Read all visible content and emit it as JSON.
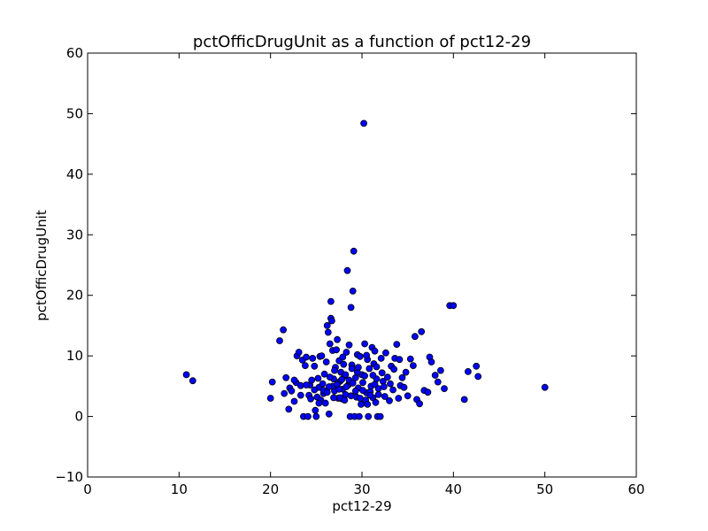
{
  "chart_data": {
    "type": "scatter",
    "title": "pctOfficDrugUnit as a function of pct12-29",
    "xlabel": "pct12-29",
    "ylabel": "pctOfficDrugUnit",
    "xlim": [
      0,
      60
    ],
    "ylim": [
      -10,
      60
    ],
    "x_ticks": [
      0,
      10,
      20,
      30,
      40,
      50,
      60
    ],
    "y_ticks": [
      -10,
      0,
      10,
      20,
      30,
      40,
      50,
      60
    ],
    "x_tick_labels": [
      "0",
      "10",
      "20",
      "30",
      "40",
      "50",
      "60"
    ],
    "y_tick_labels": [
      "−10",
      "0",
      "10",
      "20",
      "30",
      "40",
      "50",
      "60"
    ],
    "grid": false,
    "marker_color": "#0000ff",
    "marker_edge_color": "#000000",
    "points": [
      [
        10.8,
        6.9
      ],
      [
        11.5,
        5.9
      ],
      [
        20.0,
        3.0
      ],
      [
        20.2,
        5.7
      ],
      [
        21.0,
        12.5
      ],
      [
        21.4,
        14.3
      ],
      [
        21.5,
        3.8
      ],
      [
        21.7,
        6.4
      ],
      [
        22.0,
        1.2
      ],
      [
        22.1,
        4.7
      ],
      [
        22.3,
        4.2
      ],
      [
        22.6,
        2.5
      ],
      [
        22.8,
        5.6
      ],
      [
        22.9,
        10.0
      ],
      [
        23.1,
        10.6
      ],
      [
        23.3,
        5.1
      ],
      [
        23.5,
        9.3
      ],
      [
        23.6,
        0.0
      ],
      [
        23.8,
        8.4
      ],
      [
        23.9,
        9.8
      ],
      [
        24.1,
        0.0
      ],
      [
        24.2,
        3.5
      ],
      [
        24.3,
        5.2
      ],
      [
        24.5,
        6.0
      ],
      [
        24.6,
        9.6
      ],
      [
        24.8,
        8.3
      ],
      [
        24.9,
        1.0
      ],
      [
        25.0,
        0.0
      ],
      [
        25.1,
        3.2
      ],
      [
        25.2,
        6.3
      ],
      [
        25.3,
        4.8
      ],
      [
        25.4,
        9.9
      ],
      [
        25.5,
        2.7
      ],
      [
        25.6,
        10.0
      ],
      [
        25.7,
        5.4
      ],
      [
        25.8,
        3.8
      ],
      [
        25.9,
        7.0
      ],
      [
        26.0,
        2.2
      ],
      [
        26.1,
        9.0
      ],
      [
        26.2,
        15.0
      ],
      [
        26.3,
        13.9
      ],
      [
        26.4,
        0.4
      ],
      [
        26.5,
        12.0
      ],
      [
        26.6,
        19.0
      ],
      [
        26.6,
        16.2
      ],
      [
        26.7,
        15.8
      ],
      [
        26.8,
        10.9
      ],
      [
        26.9,
        6.2
      ],
      [
        27.0,
        4.2
      ],
      [
        27.1,
        8.1
      ],
      [
        27.2,
        11.0
      ],
      [
        27.3,
        12.7
      ],
      [
        27.4,
        3.0
      ],
      [
        27.5,
        9.2
      ],
      [
        27.6,
        5.8
      ],
      [
        27.7,
        7.3
      ],
      [
        27.8,
        2.9
      ],
      [
        27.9,
        4.5
      ],
      [
        28.0,
        8.6
      ],
      [
        28.1,
        6.7
      ],
      [
        28.2,
        3.6
      ],
      [
        28.3,
        10.6
      ],
      [
        28.4,
        24.1
      ],
      [
        28.5,
        5.2
      ],
      [
        28.6,
        11.8
      ],
      [
        28.7,
        0.0
      ],
      [
        28.8,
        18.0
      ],
      [
        28.9,
        8.5
      ],
      [
        29.0,
        20.7
      ],
      [
        29.1,
        27.3
      ],
      [
        29.2,
        0.0
      ],
      [
        29.3,
        6.4
      ],
      [
        29.4,
        3.2
      ],
      [
        29.5,
        10.2
      ],
      [
        29.6,
        4.7
      ],
      [
        29.7,
        0.0
      ],
      [
        29.8,
        9.9
      ],
      [
        29.9,
        2.0
      ],
      [
        30.0,
        6.9
      ],
      [
        30.1,
        5.6
      ],
      [
        30.2,
        48.4
      ],
      [
        30.3,
        12.0
      ],
      [
        30.4,
        2.7
      ],
      [
        30.5,
        3.9
      ],
      [
        30.6,
        9.4
      ],
      [
        30.7,
        0.0
      ],
      [
        30.8,
        7.9
      ],
      [
        30.9,
        4.1
      ],
      [
        31.0,
        5.0
      ],
      [
        31.1,
        11.4
      ],
      [
        31.2,
        3.1
      ],
      [
        31.3,
        8.7
      ],
      [
        31.4,
        10.8
      ],
      [
        31.5,
        2.3
      ],
      [
        31.6,
        6.2
      ],
      [
        31.7,
        0.0
      ],
      [
        31.8,
        4.6
      ],
      [
        32.0,
        0.0
      ],
      [
        32.1,
        9.6
      ],
      [
        32.2,
        7.2
      ],
      [
        32.3,
        5.8
      ],
      [
        32.5,
        3.3
      ],
      [
        32.6,
        10.5
      ],
      [
        32.8,
        6.5
      ],
      [
        33.0,
        2.6
      ],
      [
        33.2,
        8.3
      ],
      [
        33.4,
        4.4
      ],
      [
        33.6,
        9.6
      ],
      [
        33.8,
        11.9
      ],
      [
        34.0,
        3.0
      ],
      [
        34.2,
        5.1
      ],
      [
        34.4,
        6.4
      ],
      [
        34.6,
        4.8
      ],
      [
        34.8,
        7.3
      ],
      [
        35.0,
        3.4
      ],
      [
        35.3,
        9.5
      ],
      [
        35.6,
        8.4
      ],
      [
        35.8,
        13.2
      ],
      [
        36.0,
        2.8
      ],
      [
        36.3,
        2.1
      ],
      [
        36.5,
        14.0
      ],
      [
        36.8,
        4.3
      ],
      [
        37.2,
        4.0
      ],
      [
        37.4,
        9.8
      ],
      [
        37.6,
        9.0
      ],
      [
        38.0,
        6.8
      ],
      [
        38.3,
        5.7
      ],
      [
        38.6,
        7.6
      ],
      [
        39.0,
        4.6
      ],
      [
        39.6,
        18.3
      ],
      [
        40.0,
        18.3
      ],
      [
        41.2,
        2.8
      ],
      [
        41.6,
        7.4
      ],
      [
        42.5,
        8.3
      ],
      [
        42.7,
        6.6
      ],
      [
        50.0,
        4.8
      ],
      [
        25.3,
        2.2
      ],
      [
        25.8,
        4.3
      ],
      [
        26.2,
        4.0
      ],
      [
        26.5,
        6.5
      ],
      [
        26.8,
        5.0
      ],
      [
        27.0,
        7.6
      ],
      [
        27.3,
        5.3
      ],
      [
        27.6,
        3.1
      ],
      [
        27.8,
        6.1
      ],
      [
        28.1,
        2.7
      ],
      [
        28.3,
        4.9
      ],
      [
        28.6,
        6.0
      ],
      [
        28.8,
        3.4
      ],
      [
        29.0,
        5.5
      ],
      [
        29.3,
        4.2
      ],
      [
        29.5,
        7.3
      ],
      [
        29.8,
        3.0
      ],
      [
        30.1,
        4.3
      ],
      [
        30.3,
        6.7
      ],
      [
        30.6,
        2.0
      ],
      [
        30.9,
        3.5
      ],
      [
        31.2,
        6.8
      ],
      [
        31.4,
        5.3
      ],
      [
        31.8,
        3.6
      ],
      [
        32.4,
        4.9
      ],
      [
        33.1,
        5.4
      ],
      [
        33.5,
        7.8
      ],
      [
        34.1,
        9.4
      ],
      [
        28.9,
        7.9
      ],
      [
        27.9,
        9.8
      ],
      [
        26.9,
        3.1
      ],
      [
        29.6,
        8.1
      ],
      [
        30.5,
        10.1
      ],
      [
        28.2,
        6.9
      ],
      [
        27.5,
        4.5
      ],
      [
        26.4,
        4.9
      ],
      [
        24.8,
        4.4
      ],
      [
        24.4,
        2.9
      ],
      [
        23.9,
        5.2
      ],
      [
        23.3,
        3.5
      ],
      [
        22.6,
        6.0
      ],
      [
        31.6,
        8.2
      ]
    ]
  }
}
